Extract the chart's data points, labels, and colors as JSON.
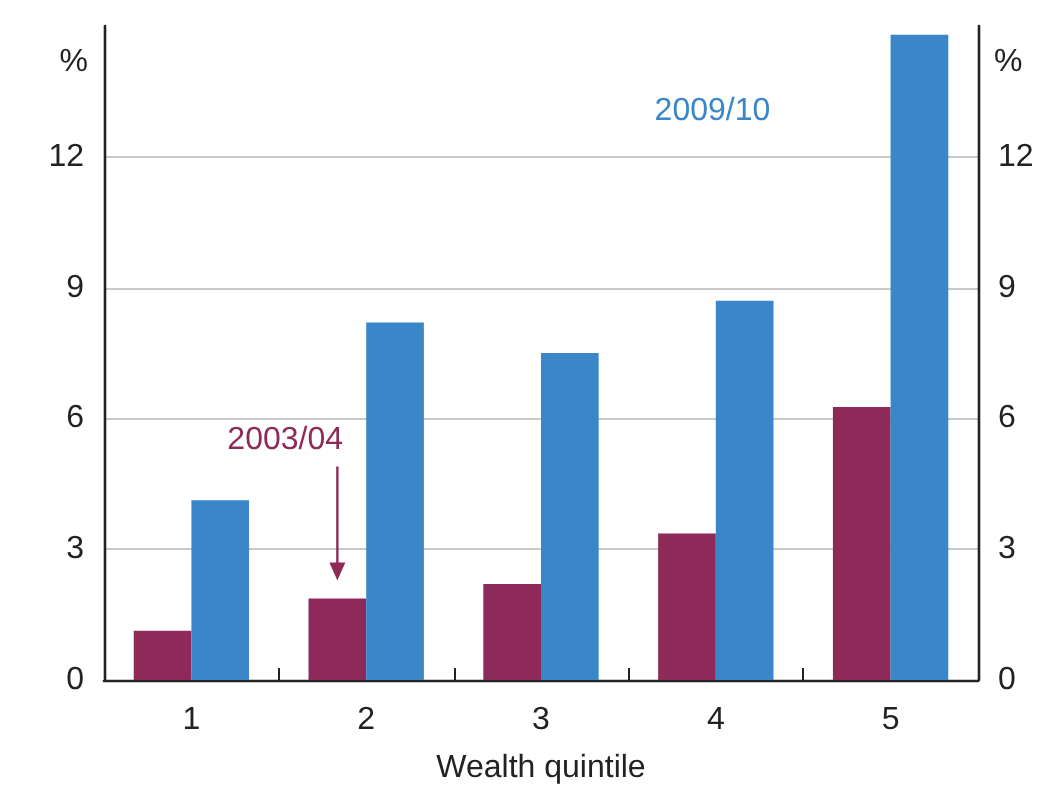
{
  "chart_data": {
    "type": "bar",
    "xlabel": "Wealth quintile",
    "ylabel": "%",
    "y2label": "%",
    "categories": [
      "1",
      "2",
      "3",
      "4",
      "5"
    ],
    "series": [
      {
        "name": "2003/04",
        "color": "#8e2a5a",
        "values": [
          1.13,
          1.87,
          2.2,
          3.36,
          6.26
        ]
      },
      {
        "name": "2009/10",
        "color": "#3a86c8",
        "values": [
          4.12,
          8.2,
          7.5,
          8.7,
          14.8
        ]
      }
    ],
    "ylim": [
      0,
      15
    ],
    "yticks": [
      0,
      3,
      6,
      9,
      12
    ],
    "y2lim": [
      0,
      15
    ],
    "y2ticks": [
      0,
      3,
      6,
      9,
      12
    ],
    "grid": "y",
    "legend": false
  }
}
